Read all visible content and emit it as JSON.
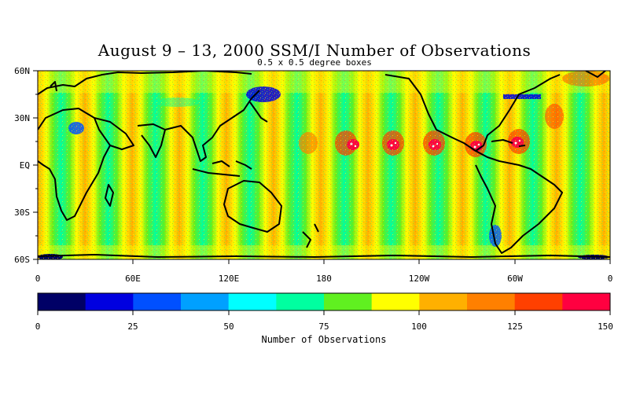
{
  "title": "August 9 – 13, 2000 SSM/I Number of Observations",
  "subtitle": "0.5 x 0.5 degree boxes",
  "map": {
    "lat_labels": [
      "60N",
      "30N",
      "EQ",
      "30S",
      "60S"
    ],
    "lon_labels": [
      "0",
      "60E",
      "120E",
      "180",
      "120W",
      "60W",
      "0"
    ]
  },
  "colorbar": {
    "label": "Number of Observations",
    "tick_labels": [
      "0",
      "25",
      "50",
      "75",
      "100",
      "125",
      "150"
    ],
    "min": 0,
    "max": 150,
    "step": 12.5,
    "colors": [
      "#000066",
      "#0000e0",
      "#0050ff",
      "#00a0ff",
      "#00ffff",
      "#00ffa0",
      "#60f020",
      "#ffff00",
      "#ffb000",
      "#ff8000",
      "#ff4000",
      "#ff0040"
    ]
  }
}
